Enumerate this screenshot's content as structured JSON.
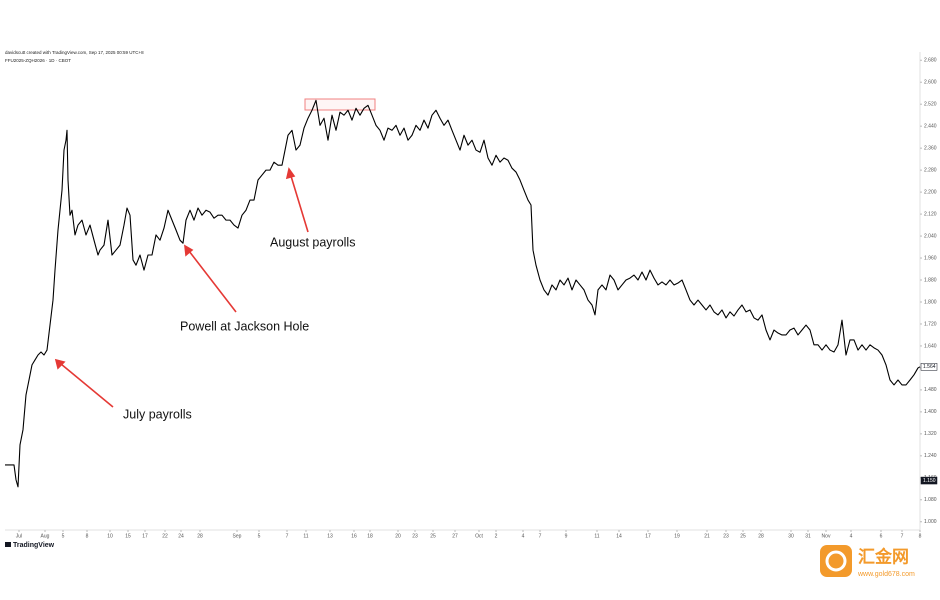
{
  "chart_data": {
    "type": "line",
    "header": "davidscutt created with TradingView.com, Sep 17, 2025 00:59 UTC+8",
    "symbol_line": "FFU2025-ZQH2026 · 1D · CBOT",
    "brand": "TradingView",
    "watermark_title": "汇金网",
    "watermark_url": "www.gold678.com",
    "annotations": [
      "August payrolls",
      "Powell at Jackson Hole",
      "July payrolls"
    ],
    "color": "#000000",
    "grid": false,
    "xlim": [
      0,
      915
    ],
    "ylim": [
      0.97,
      2.71
    ],
    "xticks": [
      {
        "value": 14,
        "label": "Jul"
      },
      {
        "value": 40,
        "label": "Aug"
      },
      {
        "value": 58,
        "label": "5"
      },
      {
        "value": 82,
        "label": "8"
      },
      {
        "value": 105,
        "label": "10"
      },
      {
        "value": 123,
        "label": "15"
      },
      {
        "value": 140,
        "label": "17"
      },
      {
        "value": 160,
        "label": "22"
      },
      {
        "value": 176,
        "label": "24"
      },
      {
        "value": 195,
        "label": "28"
      },
      {
        "value": 232,
        "label": "Sep"
      },
      {
        "value": 254,
        "label": "5"
      },
      {
        "value": 282,
        "label": "7"
      },
      {
        "value": 301,
        "label": "11"
      },
      {
        "value": 325,
        "label": "13"
      },
      {
        "value": 349,
        "label": "16"
      },
      {
        "value": 365,
        "label": "18"
      },
      {
        "value": 393,
        "label": "20"
      },
      {
        "value": 410,
        "label": "23"
      },
      {
        "value": 428,
        "label": "25"
      },
      {
        "value": 450,
        "label": "27"
      },
      {
        "value": 474,
        "label": "Oct"
      },
      {
        "value": 491,
        "label": "2"
      },
      {
        "value": 518,
        "label": "4"
      },
      {
        "value": 535,
        "label": "7"
      },
      {
        "value": 561,
        "label": "9"
      },
      {
        "value": 592,
        "label": "11"
      },
      {
        "value": 614,
        "label": "14"
      },
      {
        "value": 643,
        "label": "17"
      },
      {
        "value": 672,
        "label": "19"
      },
      {
        "value": 702,
        "label": "21"
      },
      {
        "value": 721,
        "label": "23"
      },
      {
        "value": 738,
        "label": "25"
      },
      {
        "value": 756,
        "label": "28"
      },
      {
        "value": 786,
        "label": "30"
      },
      {
        "value": 803,
        "label": "31"
      },
      {
        "value": 821,
        "label": "Nov"
      },
      {
        "value": 846,
        "label": "4"
      },
      {
        "value": 876,
        "label": "6"
      },
      {
        "value": 897,
        "label": "7"
      },
      {
        "value": 915,
        "label": "8"
      }
    ],
    "yticks": [
      {
        "value": 1.0,
        "label": "1.000"
      },
      {
        "value": 1.08,
        "label": "1.080"
      },
      {
        "value": 1.16,
        "label": "1.160"
      },
      {
        "value": 1.24,
        "label": "1.240"
      },
      {
        "value": 1.32,
        "label": "1.320"
      },
      {
        "value": 1.4,
        "label": "1.400"
      },
      {
        "value": 1.48,
        "label": "1.480"
      },
      {
        "value": 1.56,
        "label": "1.560"
      },
      {
        "value": 1.64,
        "label": "1.640"
      },
      {
        "value": 1.72,
        "label": "1.720"
      },
      {
        "value": 1.8,
        "label": "1.800"
      },
      {
        "value": 1.88,
        "label": "1.880"
      },
      {
        "value": 1.96,
        "label": "1.960"
      },
      {
        "value": 2.04,
        "label": "2.040"
      },
      {
        "value": 2.12,
        "label": "2.120"
      },
      {
        "value": 2.2,
        "label": "2.200"
      },
      {
        "value": 2.28,
        "label": "2.280"
      },
      {
        "value": 2.36,
        "label": "2.360"
      },
      {
        "value": 2.44,
        "label": "2.440"
      },
      {
        "value": 2.52,
        "label": "2.520"
      },
      {
        "value": 2.6,
        "label": "2.600"
      },
      {
        "value": 2.68,
        "label": "2.680"
      }
    ],
    "price_markers": [
      {
        "value": 1.564,
        "label": "1.564"
      },
      {
        "value": 1.15,
        "label": "1.150"
      }
    ],
    "x": [
      0,
      9,
      11,
      13,
      15,
      18,
      21,
      24,
      27,
      30,
      33,
      36,
      39,
      42,
      45,
      48,
      50,
      53,
      55,
      57,
      59,
      61,
      62,
      63,
      65,
      67,
      70,
      73,
      77,
      81,
      85,
      89,
      93,
      95,
      99,
      103,
      107,
      111,
      115,
      119,
      122,
      125,
      128,
      131,
      135,
      139,
      143,
      147,
      151,
      155,
      159,
      163,
      167,
      171,
      175,
      178,
      181,
      185,
      189,
      193,
      197,
      201,
      205,
      209,
      213,
      217,
      221,
      225,
      229,
      233,
      237,
      241,
      245,
      249,
      253,
      257,
      261,
      265,
      269,
      273,
      277,
      279,
      283,
      287,
      291,
      295,
      299,
      303,
      307,
      311,
      315,
      319,
      323,
      327,
      331,
      335,
      339,
      343,
      347,
      351,
      355,
      359,
      363,
      367,
      371,
      375,
      379,
      383,
      387,
      391,
      395,
      399,
      403,
      407,
      411,
      415,
      419,
      423,
      427,
      431,
      435,
      439,
      443,
      447,
      451,
      455,
      459,
      463,
      467,
      471,
      475,
      479,
      483,
      487,
      491,
      495,
      499,
      503,
      507,
      511,
      515,
      519,
      523,
      526,
      528,
      531,
      535,
      539,
      543,
      547,
      551,
      555,
      559,
      563,
      567,
      571,
      575,
      579,
      583,
      587,
      590,
      593,
      597,
      601,
      605,
      609,
      613,
      617,
      621,
      625,
      629,
      633,
      637,
      641,
      645,
      649,
      653,
      657,
      661,
      665,
      669,
      673,
      677,
      681,
      685,
      689,
      693,
      697,
      701,
      705,
      709,
      713,
      717,
      721,
      725,
      729,
      733,
      737,
      741,
      745,
      749,
      753,
      757,
      761,
      765,
      769,
      773,
      777,
      781,
      785,
      789,
      793,
      797,
      801,
      805,
      809,
      813,
      817,
      821,
      825,
      829,
      833,
      837,
      841,
      845,
      849,
      853,
      857,
      861,
      865,
      869,
      873,
      877,
      881,
      885,
      889,
      893,
      897,
      901,
      905,
      909,
      913,
      915
    ],
    "values": [
      1.207,
      1.207,
      1.153,
      1.127,
      1.28,
      1.335,
      1.462,
      1.516,
      1.571,
      1.589,
      1.607,
      1.618,
      1.607,
      1.625,
      1.716,
      1.807,
      1.916,
      2.062,
      2.134,
      2.207,
      2.353,
      2.389,
      2.425,
      2.244,
      2.116,
      2.134,
      2.044,
      2.08,
      2.098,
      2.044,
      2.08,
      2.025,
      1.971,
      1.989,
      2.007,
      2.098,
      1.971,
      1.989,
      2.007,
      2.08,
      2.142,
      2.116,
      1.953,
      1.934,
      1.971,
      1.916,
      1.971,
      1.971,
      2.044,
      2.025,
      2.069,
      2.134,
      2.098,
      2.062,
      2.025,
      2.014,
      2.098,
      2.134,
      2.098,
      2.142,
      2.116,
      2.134,
      2.127,
      2.105,
      2.116,
      2.116,
      2.098,
      2.098,
      2.08,
      2.069,
      2.116,
      2.134,
      2.171,
      2.171,
      2.244,
      2.262,
      2.28,
      2.28,
      2.309,
      2.298,
      2.298,
      2.334,
      2.407,
      2.425,
      2.353,
      2.371,
      2.433,
      2.469,
      2.498,
      2.534,
      2.443,
      2.469,
      2.389,
      2.48,
      2.425,
      2.491,
      2.48,
      2.498,
      2.462,
      2.505,
      2.48,
      2.505,
      2.516,
      2.48,
      2.443,
      2.425,
      2.389,
      2.433,
      2.425,
      2.443,
      2.407,
      2.433,
      2.389,
      2.407,
      2.443,
      2.425,
      2.462,
      2.433,
      2.48,
      2.498,
      2.469,
      2.443,
      2.462,
      2.425,
      2.389,
      2.353,
      2.407,
      2.371,
      2.389,
      2.353,
      2.345,
      2.389,
      2.324,
      2.298,
      2.334,
      2.309,
      2.324,
      2.316,
      2.287,
      2.273,
      2.244,
      2.207,
      2.171,
      2.153,
      1.989,
      1.934,
      1.88,
      1.844,
      1.825,
      1.862,
      1.844,
      1.88,
      1.862,
      1.887,
      1.844,
      1.88,
      1.862,
      1.844,
      1.807,
      1.789,
      1.753,
      1.844,
      1.862,
      1.844,
      1.898,
      1.88,
      1.844,
      1.862,
      1.88,
      1.887,
      1.898,
      1.88,
      1.909,
      1.88,
      1.916,
      1.887,
      1.862,
      1.873,
      1.862,
      1.88,
      1.862,
      1.869,
      1.88,
      1.844,
      1.807,
      1.789,
      1.807,
      1.789,
      1.771,
      1.789,
      1.764,
      1.753,
      1.771,
      1.742,
      1.764,
      1.749,
      1.771,
      1.789,
      1.764,
      1.771,
      1.742,
      1.734,
      1.753,
      1.698,
      1.662,
      1.698,
      1.687,
      1.68,
      1.68,
      1.698,
      1.705,
      1.68,
      1.698,
      1.716,
      1.698,
      1.644,
      1.644,
      1.625,
      1.644,
      1.625,
      1.618,
      1.644,
      1.734,
      1.607,
      1.662,
      1.662,
      1.625,
      1.644,
      1.625,
      1.644,
      1.633,
      1.625,
      1.607,
      1.571,
      1.516,
      1.498,
      1.516,
      1.498,
      1.498,
      1.516,
      1.535,
      1.56,
      1.564
    ]
  }
}
